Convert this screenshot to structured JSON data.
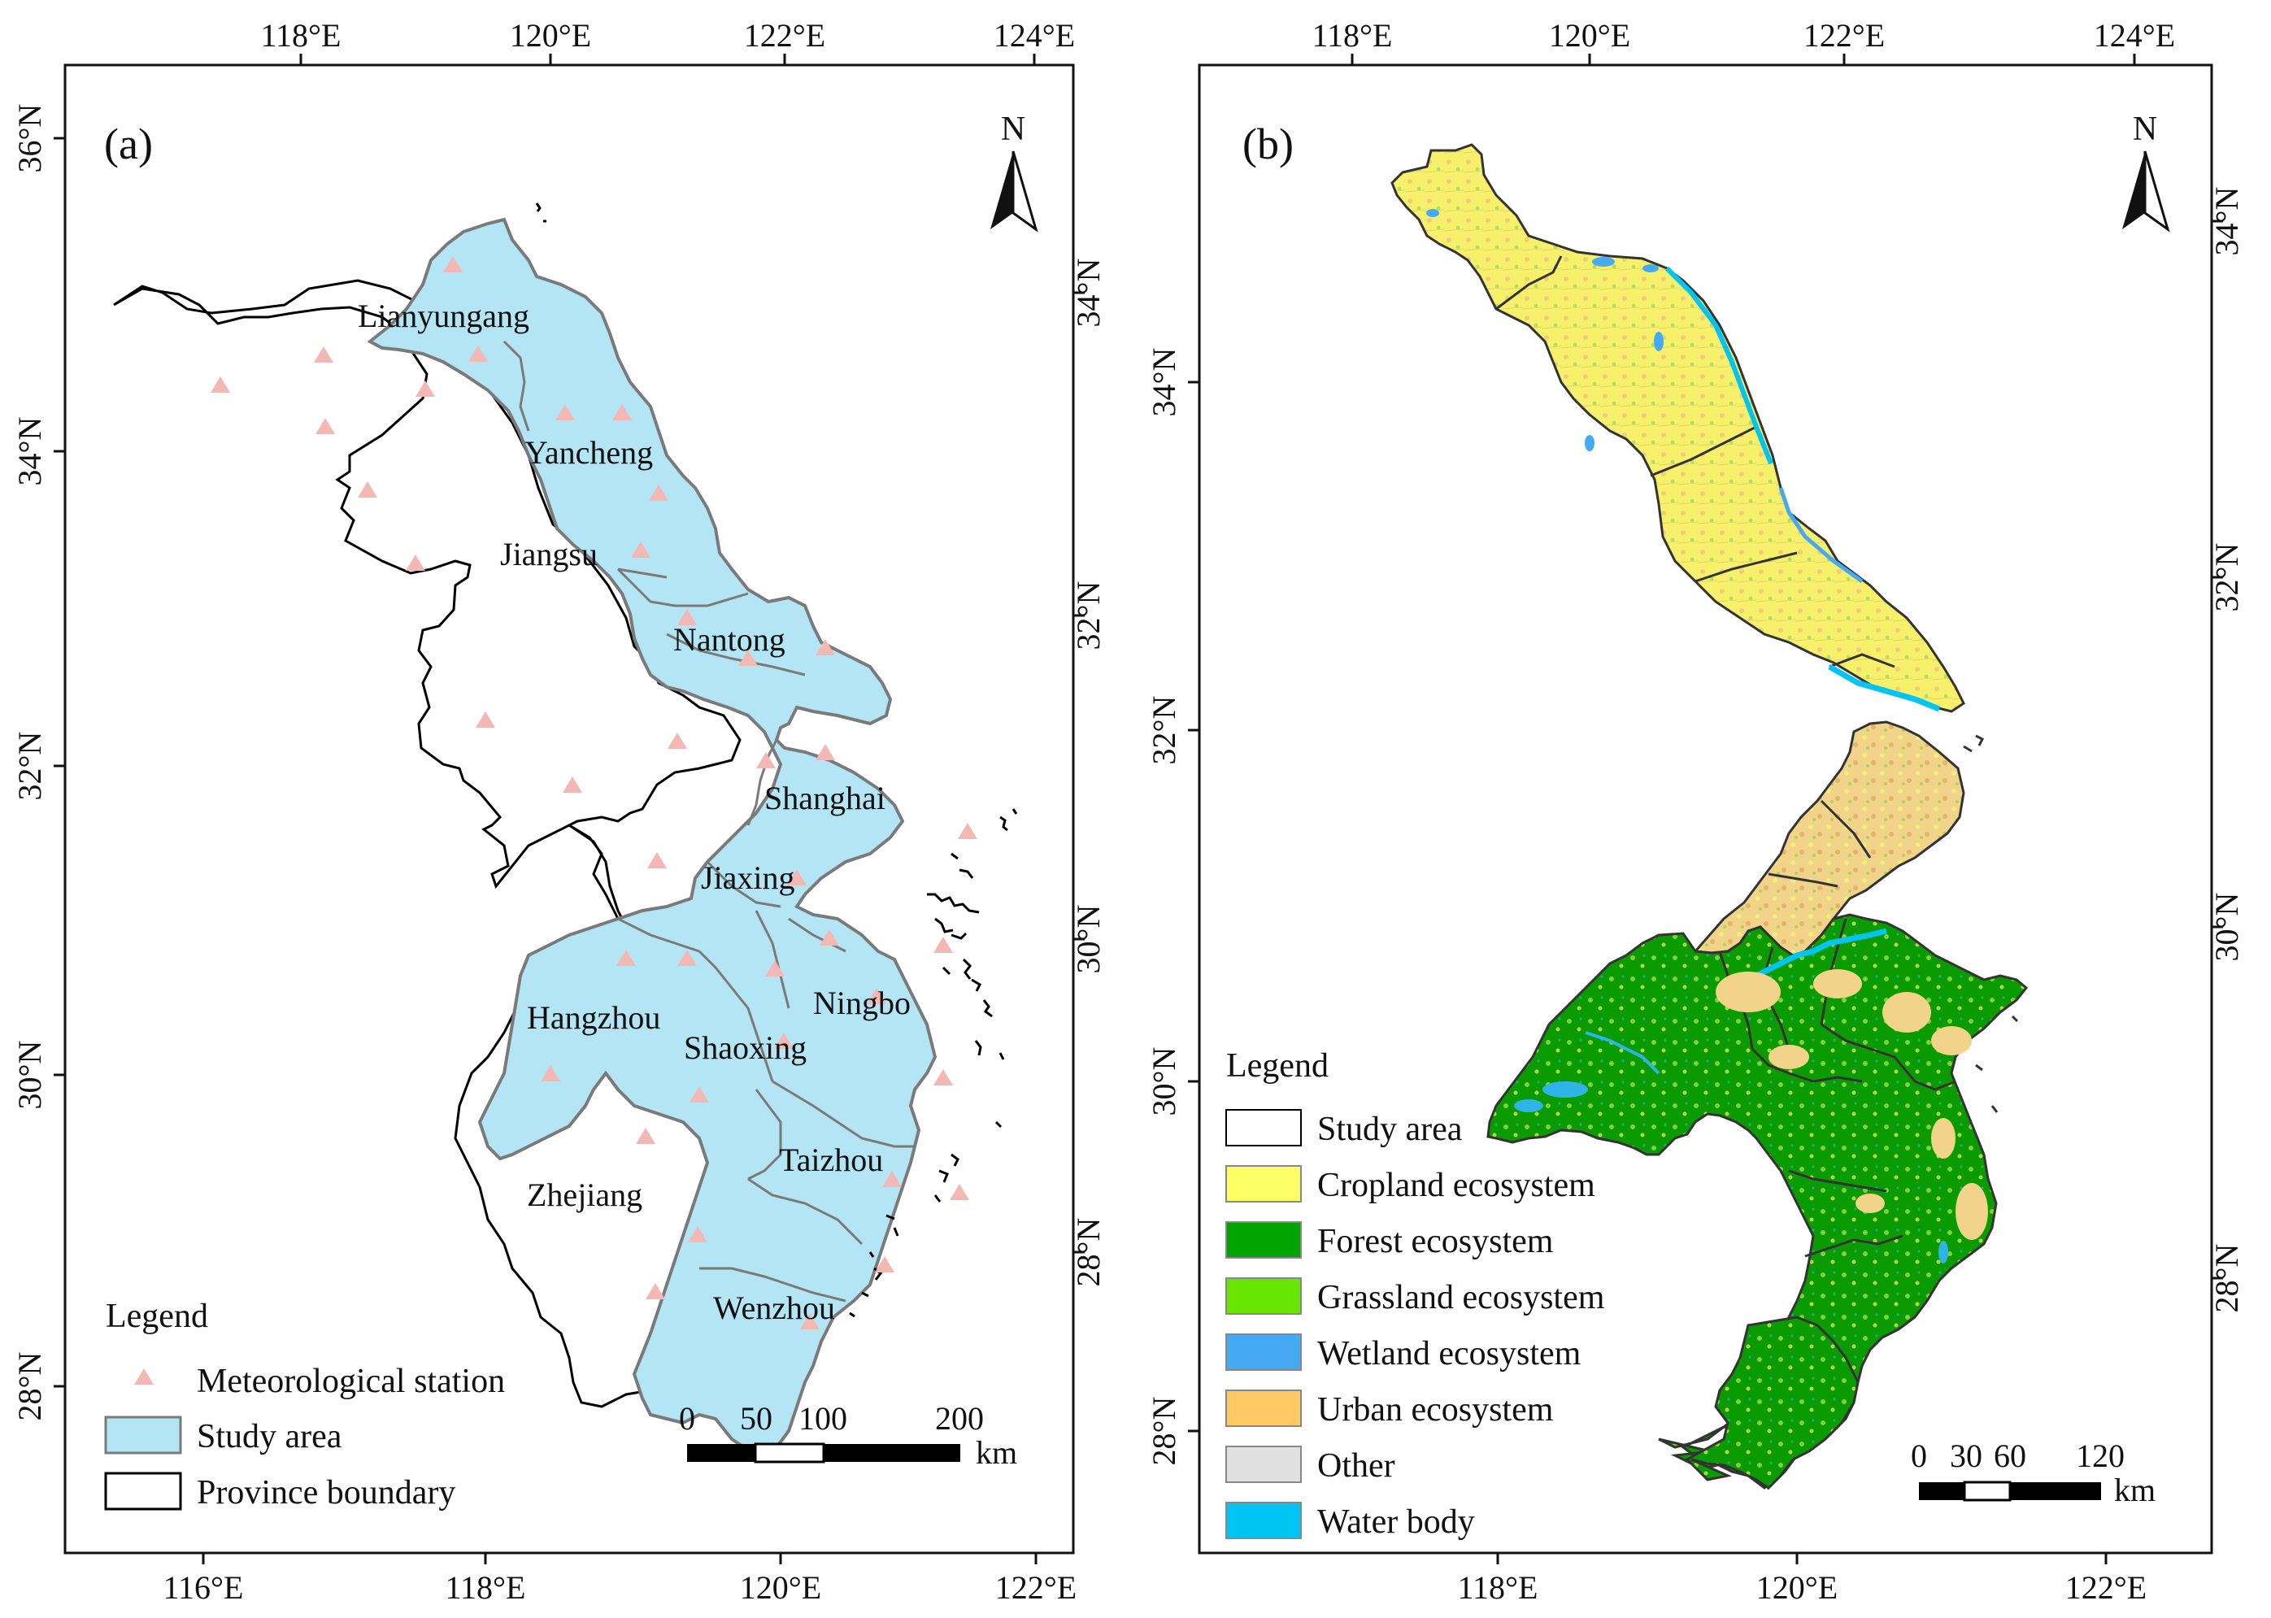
{
  "panel_a": {
    "label": "(a)",
    "north": "N",
    "top_ticks": [
      "118°E",
      "120°E",
      "122°E",
      "124°E"
    ],
    "bottom_ticks": [
      "116°E",
      "118°E",
      "120°E",
      "122°E"
    ],
    "left_ticks": [
      "36°N",
      "34°N",
      "32°N",
      "30°N",
      "28°N"
    ],
    "right_ticks": [
      "34°N",
      "32°N",
      "30°N",
      "28°N"
    ],
    "cities": [
      "Lianyungang",
      "Yancheng",
      "Nantong",
      "Shanghai",
      "Jiaxing",
      "Hangzhou",
      "Shaoxing",
      "Ningbo",
      "Taizhou",
      "Wenzhou"
    ],
    "provinces": [
      "Jiangsu",
      "Zhejiang"
    ],
    "legend": {
      "title": "Legend",
      "items": [
        "Meteorological station",
        "Study area",
        "Province boundary"
      ]
    },
    "scale": {
      "labels": [
        "0",
        "50",
        "100",
        "200"
      ],
      "unit": "km"
    },
    "colors": {
      "study_area": "#b3e5f5",
      "station": "#f4b8b4",
      "boundary": "#000000"
    }
  },
  "panel_b": {
    "label": "(b)",
    "north": "N",
    "top_ticks": [
      "118°E",
      "120°E",
      "122°E",
      "124°E"
    ],
    "bottom_ticks": [
      "118°E",
      "120°E",
      "122°E"
    ],
    "left_ticks": [
      "34°N",
      "32°N",
      "30°N",
      "28°N"
    ],
    "right_ticks": [
      "34°N",
      "32°N",
      "30°N",
      "28°N"
    ],
    "legend": {
      "title": "Legend",
      "items": [
        {
          "label": "Study area",
          "color": "#ffffff"
        },
        {
          "label": "Cropland ecosystem",
          "color": "#ffff66"
        },
        {
          "label": "Forest ecosystem",
          "color": "#00a300"
        },
        {
          "label": "Grassland ecosystem",
          "color": "#66e600"
        },
        {
          "label": "Wetland ecosystem",
          "color": "#45aaf2"
        },
        {
          "label": "Urban ecosystem",
          "color": "#ffc966"
        },
        {
          "label": "Other",
          "color": "#e0e0e0"
        },
        {
          "label": "Water body",
          "color": "#00c4f2"
        }
      ]
    },
    "scale": {
      "labels": [
        "0",
        "30",
        "60",
        "120"
      ],
      "unit": "km"
    }
  }
}
